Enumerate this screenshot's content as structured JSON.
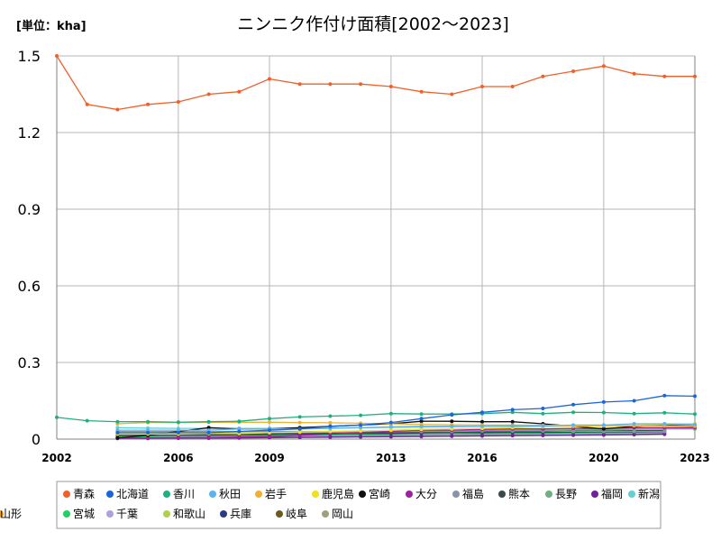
{
  "chart_data": {
    "type": "line",
    "title": "ニンニク作付け面積[2002～2023]",
    "unit_label": "[単位：kha]",
    "xlabel": "",
    "ylabel": "",
    "xlim": [
      2002,
      2023
    ],
    "ylim": [
      0,
      1.5
    ],
    "x_ticks": [
      "2002",
      "2006",
      "2009",
      "2013",
      "2016",
      "2020",
      "2023"
    ],
    "x_tick_values": [
      2002,
      2006,
      2009,
      2013,
      2016,
      2020,
      2023
    ],
    "y_ticks": [
      "0",
      "0.3",
      "0.6",
      "0.9",
      "1.2",
      "1.5"
    ],
    "y_tick_values": [
      0,
      0.3,
      0.6,
      0.9,
      1.2,
      1.5
    ],
    "grid": true,
    "legend_position": "bottom",
    "series": [
      {
        "name": "青森",
        "color": "#f0602a",
        "x": [
          2002,
          2003,
          2004,
          2005,
          2006,
          2007,
          2008,
          2009,
          2010,
          2011,
          2012,
          2013,
          2014,
          2015,
          2016,
          2017,
          2018,
          2019,
          2020,
          2021,
          2022,
          2023
        ],
        "values": [
          1.5,
          1.31,
          1.29,
          1.31,
          1.32,
          1.35,
          1.36,
          1.41,
          1.39,
          1.39,
          1.39,
          1.38,
          1.36,
          1.35,
          1.38,
          1.38,
          1.42,
          1.44,
          1.46,
          1.43,
          1.42,
          1.42
        ]
      },
      {
        "name": "北海道",
        "color": "#1a66d9",
        "x": [
          2004,
          2005,
          2006,
          2007,
          2008,
          2009,
          2010,
          2011,
          2012,
          2013,
          2014,
          2015,
          2016,
          2017,
          2018,
          2019,
          2020,
          2021,
          2022,
          2023
        ],
        "values": [
          0.025,
          0.025,
          0.025,
          0.025,
          0.03,
          0.035,
          0.04,
          0.05,
          0.055,
          0.065,
          0.08,
          0.095,
          0.105,
          0.115,
          0.12,
          0.135,
          0.145,
          0.15,
          0.17,
          0.168
        ]
      },
      {
        "name": "香川",
        "color": "#20b080",
        "x": [
          2002,
          2003,
          2004,
          2005,
          2006,
          2007,
          2008,
          2009,
          2010,
          2011,
          2012,
          2013,
          2014,
          2015,
          2016,
          2017,
          2018,
          2019,
          2020,
          2021,
          2022,
          2023
        ],
        "values": [
          0.085,
          0.072,
          0.068,
          0.068,
          0.066,
          0.068,
          0.07,
          0.08,
          0.087,
          0.09,
          0.093,
          0.1,
          0.098,
          0.098,
          0.1,
          0.105,
          0.1,
          0.105,
          0.104,
          0.1,
          0.103,
          0.098
        ]
      },
      {
        "name": "秋田",
        "color": "#5ab4f0",
        "x": [
          2004,
          2005,
          2006,
          2007,
          2008,
          2009,
          2010,
          2011,
          2012,
          2013,
          2014,
          2015,
          2016,
          2017,
          2018,
          2019,
          2020,
          2021,
          2022,
          2023
        ],
        "values": [
          0.035,
          0.035,
          0.035,
          0.035,
          0.04,
          0.04,
          0.04,
          0.042,
          0.045,
          0.048,
          0.05,
          0.05,
          0.05,
          0.052,
          0.052,
          0.055,
          0.055,
          0.06,
          0.06,
          0.058
        ]
      },
      {
        "name": "岩手",
        "color": "#f0b030",
        "x": [
          2004,
          2005,
          2006,
          2007,
          2008,
          2009,
          2010,
          2011,
          2012,
          2013,
          2014,
          2015,
          2016,
          2017,
          2018,
          2019,
          2020,
          2021,
          2022,
          2023
        ],
        "values": [
          0.06,
          0.065,
          0.065,
          0.066,
          0.066,
          0.066,
          0.065,
          0.064,
          0.062,
          0.06,
          0.058,
          0.056,
          0.055,
          0.055,
          0.054,
          0.054,
          0.053,
          0.052,
          0.052,
          0.05
        ]
      },
      {
        "name": "鹿児島",
        "color": "#f0e020",
        "x": [
          2004,
          2005,
          2006,
          2007,
          2008,
          2009,
          2010,
          2011,
          2012,
          2013,
          2014,
          2015,
          2016,
          2017,
          2018,
          2019,
          2020,
          2021,
          2022,
          2023
        ],
        "values": [
          0.02,
          0.02,
          0.02,
          0.022,
          0.022,
          0.025,
          0.028,
          0.03,
          0.032,
          0.035,
          0.038,
          0.04,
          0.042,
          0.045,
          0.048,
          0.05,
          0.052,
          0.055,
          0.058,
          0.06
        ]
      },
      {
        "name": "宮崎",
        "color": "#101010",
        "x": [
          2004,
          2005,
          2006,
          2007,
          2008,
          2009,
          2010,
          2011,
          2012,
          2013,
          2014,
          2015,
          2016,
          2017,
          2018,
          2019,
          2020,
          2021,
          2022,
          2023
        ],
        "values": [
          0.005,
          0.015,
          0.03,
          0.045,
          0.04,
          0.04,
          0.045,
          0.05,
          0.055,
          0.06,
          0.07,
          0.07,
          0.068,
          0.068,
          0.06,
          0.05,
          0.04,
          0.05,
          0.055,
          0.05
        ]
      },
      {
        "name": "大分",
        "color": "#a020a0",
        "x": [
          2004,
          2005,
          2006,
          2007,
          2008,
          2009,
          2010,
          2011,
          2012,
          2013,
          2014,
          2015,
          2016,
          2017,
          2018,
          2019,
          2020,
          2021,
          2022,
          2023
        ],
        "values": [
          0.005,
          0.005,
          0.006,
          0.006,
          0.008,
          0.01,
          0.015,
          0.02,
          0.025,
          0.03,
          0.035,
          0.035,
          0.038,
          0.04,
          0.04,
          0.042,
          0.042,
          0.045,
          0.045,
          0.045
        ]
      },
      {
        "name": "福島",
        "color": "#8a94a8",
        "x": [
          2004,
          2005,
          2006,
          2007,
          2008,
          2009,
          2010,
          2011,
          2012,
          2013,
          2014,
          2015,
          2016,
          2017,
          2018,
          2019,
          2020,
          2021,
          2022
        ],
        "values": [
          0.03,
          0.03,
          0.03,
          0.03,
          0.03,
          0.03,
          0.03,
          0.03,
          0.03,
          0.03,
          0.03,
          0.03,
          0.032,
          0.032,
          0.032,
          0.03,
          0.03,
          0.03,
          0.03
        ]
      },
      {
        "name": "熊本",
        "color": "#3a4a4a",
        "x": [
          2004,
          2005,
          2006,
          2007,
          2008,
          2009,
          2010,
          2011,
          2012,
          2013,
          2014,
          2015,
          2016,
          2017,
          2018,
          2019,
          2020,
          2021,
          2022
        ],
        "values": [
          0.015,
          0.015,
          0.016,
          0.016,
          0.017,
          0.018,
          0.02,
          0.02,
          0.022,
          0.022,
          0.024,
          0.025,
          0.025,
          0.026,
          0.026,
          0.027,
          0.028,
          0.028,
          0.03
        ]
      },
      {
        "name": "長野",
        "color": "#70b080",
        "x": [
          2004,
          2005,
          2006,
          2007,
          2008,
          2009,
          2010,
          2011,
          2012,
          2013,
          2014,
          2015,
          2016,
          2017,
          2018,
          2019,
          2020,
          2021,
          2022,
          2023
        ],
        "values": [
          0.02,
          0.02,
          0.022,
          0.022,
          0.024,
          0.025,
          0.026,
          0.027,
          0.028,
          0.03,
          0.03,
          0.032,
          0.033,
          0.034,
          0.035,
          0.036,
          0.037,
          0.038,
          0.04,
          0.04
        ]
      },
      {
        "name": "福岡",
        "color": "#7020a0",
        "x": [
          2004,
          2005,
          2006,
          2007,
          2008,
          2009,
          2010,
          2011,
          2012,
          2013,
          2014,
          2015,
          2016,
          2017,
          2018,
          2019,
          2020,
          2021,
          2022
        ],
        "values": [
          0.003,
          0.003,
          0.004,
          0.004,
          0.005,
          0.006,
          0.007,
          0.008,
          0.009,
          0.01,
          0.011,
          0.012,
          0.013,
          0.014,
          0.015,
          0.016,
          0.017,
          0.018,
          0.02
        ]
      },
      {
        "name": "新潟",
        "color": "#60d0d0",
        "x": [
          2004,
          2005,
          2006,
          2007,
          2008,
          2009,
          2010,
          2011,
          2012,
          2013,
          2014,
          2015,
          2016,
          2017,
          2018,
          2019,
          2020,
          2021,
          2022,
          2023
        ],
        "values": [
          0.045,
          0.043,
          0.042,
          0.042,
          0.042,
          0.042,
          0.043,
          0.044,
          0.045,
          0.046,
          0.047,
          0.048,
          0.05,
          0.05,
          0.05,
          0.052,
          0.052,
          0.054,
          0.055,
          0.055
        ]
      },
      {
        "name": "宮城",
        "color": "#20d060",
        "x": [
          2004,
          2005,
          2006,
          2007,
          2008,
          2009,
          2010,
          2011,
          2012,
          2013,
          2014,
          2015,
          2016,
          2017,
          2018,
          2019,
          2020,
          2021,
          2022
        ],
        "values": [
          0.01,
          0.01,
          0.012,
          0.012,
          0.013,
          0.014,
          0.015,
          0.016,
          0.017,
          0.018,
          0.019,
          0.02,
          0.021,
          0.022,
          0.023,
          0.024,
          0.025,
          0.026,
          0.027
        ]
      },
      {
        "name": "千葉",
        "color": "#b0a0e0",
        "x": [
          2004,
          2005,
          2006,
          2007,
          2008,
          2009,
          2010,
          2011,
          2012,
          2013,
          2014,
          2015,
          2016,
          2017,
          2018,
          2019,
          2020,
          2021,
          2022
        ],
        "values": [
          0.008,
          0.008,
          0.009,
          0.009,
          0.01,
          0.011,
          0.012,
          0.013,
          0.014,
          0.015,
          0.016,
          0.017,
          0.018,
          0.019,
          0.02,
          0.021,
          0.022,
          0.023,
          0.024
        ]
      },
      {
        "name": "和歌山",
        "color": "#b0d050",
        "x": [
          2004,
          2005,
          2006,
          2007,
          2008,
          2009,
          2010,
          2011,
          2012,
          2013,
          2014,
          2015,
          2016,
          2017,
          2018,
          2019,
          2020,
          2021,
          2022
        ],
        "values": [
          0.006,
          0.006,
          0.007,
          0.007,
          0.008,
          0.009,
          0.01,
          0.011,
          0.012,
          0.013,
          0.014,
          0.015,
          0.016,
          0.017,
          0.018,
          0.019,
          0.02,
          0.021,
          0.022
        ]
      },
      {
        "name": "兵庫",
        "color": "#2a3a80",
        "x": [
          2004,
          2005,
          2006,
          2007,
          2008,
          2009,
          2010,
          2011,
          2012,
          2013,
          2014,
          2015,
          2016,
          2017,
          2018,
          2019,
          2020,
          2021,
          2022
        ],
        "values": [
          0.02,
          0.02,
          0.02,
          0.02,
          0.02,
          0.021,
          0.022,
          0.023,
          0.024,
          0.025,
          0.026,
          0.027,
          0.028,
          0.029,
          0.03,
          0.031,
          0.032,
          0.033,
          0.034
        ]
      },
      {
        "name": "岐阜",
        "color": "#6a5a20",
        "x": [
          2004,
          2005,
          2006,
          2007,
          2008,
          2009,
          2010,
          2011,
          2012,
          2013,
          2014,
          2015,
          2016,
          2017,
          2018,
          2019,
          2020,
          2021,
          2022
        ],
        "values": [
          0.004,
          0.004,
          0.005,
          0.005,
          0.006,
          0.007,
          0.008,
          0.009,
          0.01,
          0.011,
          0.012,
          0.013,
          0.014,
          0.015,
          0.016,
          0.017,
          0.018,
          0.019,
          0.02
        ]
      },
      {
        "name": "岡山",
        "color": "#a0a080",
        "x": [
          2004,
          2005,
          2006,
          2007,
          2008,
          2009,
          2010,
          2011,
          2012,
          2013,
          2014,
          2015,
          2016,
          2017,
          2018,
          2019,
          2020,
          2021,
          2022
        ],
        "values": [
          0.002,
          0.002,
          0.003,
          0.003,
          0.004,
          0.005,
          0.006,
          0.007,
          0.008,
          0.009,
          0.01,
          0.011,
          0.012,
          0.013,
          0.014,
          0.015,
          0.016,
          0.017,
          0.018
        ]
      },
      {
        "name": "山形",
        "color": "#f0a020",
        "x": [
          2004,
          2005,
          2006,
          2007,
          2008,
          2009,
          2010,
          2011,
          2012,
          2013,
          2014,
          2015,
          2016,
          2017,
          2018,
          2019,
          2020,
          2021,
          2022,
          2023
        ],
        "values": [
          0.015,
          0.016,
          0.017,
          0.018,
          0.02,
          0.022,
          0.024,
          0.026,
          0.028,
          0.03,
          0.032,
          0.034,
          0.036,
          0.038,
          0.04,
          0.04,
          0.042,
          0.042,
          0.044,
          0.045
        ]
      }
    ]
  }
}
